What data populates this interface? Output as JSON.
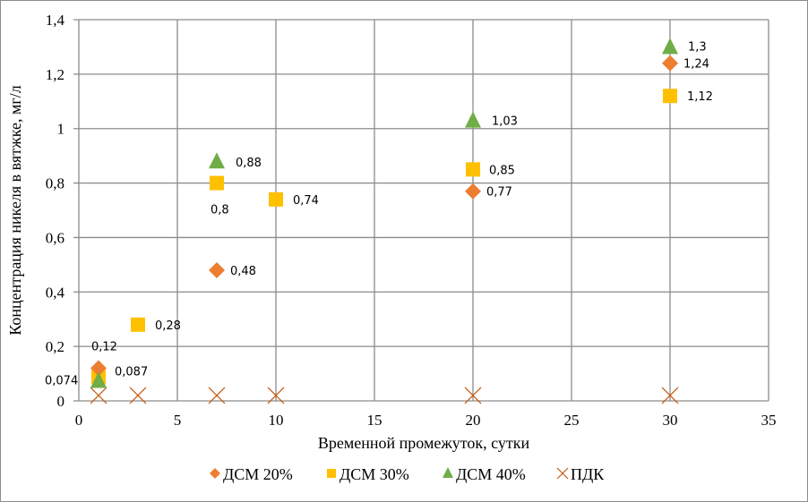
{
  "chart_data": {
    "type": "scatter",
    "title": "",
    "xlabel": "Временной промежуток, сутки",
    "ylabel": "Концентрация никеля в вятжке, мг/л",
    "xlim": [
      0,
      35
    ],
    "ylim": [
      0,
      1.4
    ],
    "x_ticks": [
      "0",
      "5",
      "10",
      "15",
      "20",
      "25",
      "30",
      "35"
    ],
    "y_ticks": [
      "0",
      "0,2",
      "0,4",
      "0,6",
      "0,8",
      "1",
      "1,2",
      "1,4"
    ],
    "grid": true,
    "legend_position": "bottom",
    "series": [
      {
        "name": "ДСМ 20%",
        "marker": "diamond",
        "color": "#ED7D31",
        "points": [
          {
            "x": 1,
            "y": 0.12,
            "label": "0,12"
          },
          {
            "x": 7,
            "y": 0.48,
            "label": "0,48"
          },
          {
            "x": 20,
            "y": 0.77,
            "label": "0,77"
          },
          {
            "x": 30,
            "y": 1.24,
            "label": "1,24"
          }
        ]
      },
      {
        "name": "ДСМ 30%",
        "marker": "square",
        "color": "#FFC000",
        "points": [
          {
            "x": 1,
            "y": 0.087,
            "label": "0,087"
          },
          {
            "x": 3,
            "y": 0.28,
            "label": "0,28"
          },
          {
            "x": 7,
            "y": 0.8,
            "label": "0,8"
          },
          {
            "x": 10,
            "y": 0.74,
            "label": "0,74"
          },
          {
            "x": 20,
            "y": 0.85,
            "label": "0,85"
          },
          {
            "x": 30,
            "y": 1.12,
            "label": "1,12"
          }
        ]
      },
      {
        "name": "ДСМ 40%",
        "marker": "triangle",
        "color": "#70AD47",
        "points": [
          {
            "x": 1,
            "y": 0.074,
            "label": "0,074"
          },
          {
            "x": 7,
            "y": 0.88,
            "label": "0,88"
          },
          {
            "x": 20,
            "y": 1.03,
            "label": "1,03"
          },
          {
            "x": 30,
            "y": 1.3,
            "label": "1,3"
          }
        ]
      },
      {
        "name": "ПДК",
        "marker": "x",
        "color": "#C55A11",
        "points": [
          {
            "x": 1,
            "y": 0.02
          },
          {
            "x": 3,
            "y": 0.02
          },
          {
            "x": 7,
            "y": 0.02
          },
          {
            "x": 10,
            "y": 0.02
          },
          {
            "x": 20,
            "y": 0.02
          },
          {
            "x": 30,
            "y": 0.02
          }
        ]
      }
    ]
  }
}
